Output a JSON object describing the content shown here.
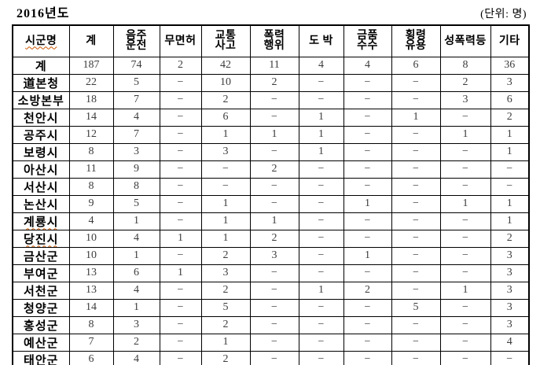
{
  "page": {
    "title": "2016년도",
    "unit_label": "(단위: 명)"
  },
  "table": {
    "columns": [
      {
        "label": "시군명",
        "wavy": true
      },
      {
        "label": "계"
      },
      {
        "label": "음주\n운전"
      },
      {
        "label": "무면허"
      },
      {
        "label": "교통\n사고"
      },
      {
        "label": "폭력\n행위"
      },
      {
        "label": "도 박"
      },
      {
        "label": "금품\n수수"
      },
      {
        "label": "횡령\n유용"
      },
      {
        "label": "성폭력등"
      },
      {
        "label": "기타"
      }
    ],
    "empty_marker": "−",
    "rows": [
      {
        "name": "계",
        "total": true,
        "values": [
          "187",
          "74",
          "2",
          "42",
          "11",
          "4",
          "4",
          "6",
          "8",
          "36"
        ]
      },
      {
        "name": "道본청",
        "values": [
          "22",
          "5",
          "−",
          "10",
          "2",
          "−",
          "−",
          "−",
          "2",
          "3"
        ]
      },
      {
        "name": "소방본부",
        "values": [
          "18",
          "7",
          "−",
          "2",
          "−",
          "−",
          "−",
          "−",
          "3",
          "6"
        ]
      },
      {
        "name": "천안시",
        "values": [
          "14",
          "4",
          "−",
          "6",
          "−",
          "1",
          "−",
          "1",
          "−",
          "2"
        ]
      },
      {
        "name": "공주시",
        "values": [
          "12",
          "7",
          "−",
          "1",
          "1",
          "1",
          "−",
          "−",
          "1",
          "1"
        ]
      },
      {
        "name": "보령시",
        "values": [
          "8",
          "3",
          "−",
          "3",
          "−",
          "1",
          "−",
          "−",
          "−",
          "1"
        ]
      },
      {
        "name": "아산시",
        "values": [
          "11",
          "9",
          "−",
          "−",
          "2",
          "−",
          "−",
          "−",
          "−",
          "−"
        ]
      },
      {
        "name": "서산시",
        "values": [
          "8",
          "8",
          "−",
          "−",
          "−",
          "−",
          "−",
          "−",
          "−",
          "−"
        ]
      },
      {
        "name": "논산시",
        "values": [
          "9",
          "5",
          "−",
          "1",
          "−",
          "−",
          "1",
          "−",
          "1",
          "1"
        ]
      },
      {
        "name": "계룡시",
        "wavy": true,
        "values": [
          "4",
          "1",
          "−",
          "1",
          "1",
          "−",
          "−",
          "−",
          "−",
          "1"
        ]
      },
      {
        "name": "당진시",
        "wavy": true,
        "values": [
          "10",
          "4",
          "1",
          "1",
          "2",
          "−",
          "−",
          "−",
          "−",
          "2"
        ]
      },
      {
        "name": "금산군",
        "values": [
          "10",
          "1",
          "−",
          "2",
          "3",
          "−",
          "1",
          "−",
          "−",
          "3"
        ]
      },
      {
        "name": "부여군",
        "values": [
          "13",
          "6",
          "1",
          "3",
          "−",
          "−",
          "−",
          "−",
          "−",
          "3"
        ]
      },
      {
        "name": "서천군",
        "values": [
          "13",
          "4",
          "−",
          "2",
          "−",
          "1",
          "2",
          "−",
          "1",
          "3"
        ]
      },
      {
        "name": "청양군",
        "values": [
          "14",
          "1",
          "−",
          "5",
          "−",
          "−",
          "−",
          "5",
          "−",
          "3"
        ]
      },
      {
        "name": "홍성군",
        "values": [
          "8",
          "3",
          "−",
          "2",
          "−",
          "−",
          "−",
          "−",
          "−",
          "3"
        ]
      },
      {
        "name": "예산군",
        "values": [
          "7",
          "2",
          "−",
          "1",
          "−",
          "−",
          "−",
          "−",
          "−",
          "4"
        ]
      },
      {
        "name": "태안군",
        "values": [
          "6",
          "4",
          "−",
          "2",
          "−",
          "−",
          "−",
          "−",
          "−",
          "−"
        ]
      }
    ]
  }
}
